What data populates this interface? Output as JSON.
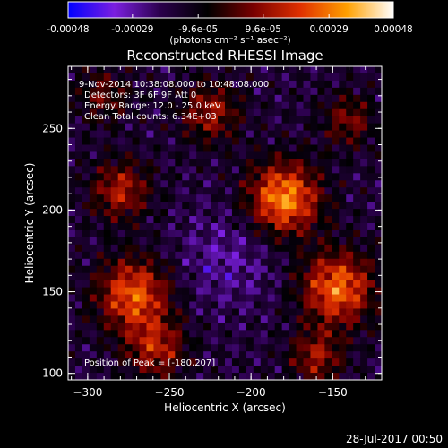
{
  "colorbar": {
    "tick_labels": [
      "-0.00048",
      "-0.00029",
      "-9.6e-05",
      "9.6e-05",
      "0.00029",
      "0.00048"
    ],
    "tick_values": [
      -0.00048,
      -0.00029,
      -9.6e-05,
      9.6e-05,
      0.00029,
      0.00048
    ],
    "range": [
      -0.00048,
      0.00048
    ],
    "units_label": "(photons cm⁻² s⁻¹ asec⁻²)",
    "colors": [
      "#0000ff",
      "#7b1fe0",
      "#2a004a",
      "#000000",
      "#7a0000",
      "#e03000",
      "#ffa000",
      "#ffffff"
    ]
  },
  "chart_data": {
    "type": "heatmap",
    "title": "Reconstructed RHESSI Image",
    "xlabel": "Heliocentric X (arcsec)",
    "ylabel": "Heliocentric Y (arcsec)",
    "xlim": [
      -312,
      -120
    ],
    "ylim": [
      96,
      288
    ],
    "xticks": [
      -300,
      -250,
      -200,
      -150
    ],
    "xtick_labels": [
      "−300",
      "−250",
      "−200",
      "−150"
    ],
    "yticks": [
      100,
      150,
      200,
      250
    ],
    "ytick_labels": [
      "100",
      "150",
      "200",
      "250"
    ],
    "annotations": [
      "9-Nov-2014 10:38:08.000 to 10:48:08.000",
      "Detectors: 3F 6F 9F  Att 0",
      "Energy Range: 12.0 - 25.0 keV",
      "Clean    Total counts: 6.34E+03"
    ],
    "peak_label": "Position of Peak = [-180,207]",
    "peak": [
      -180,
      207
    ]
  },
  "footer": {
    "timestamp": "28-Jul-2017 00:50"
  }
}
